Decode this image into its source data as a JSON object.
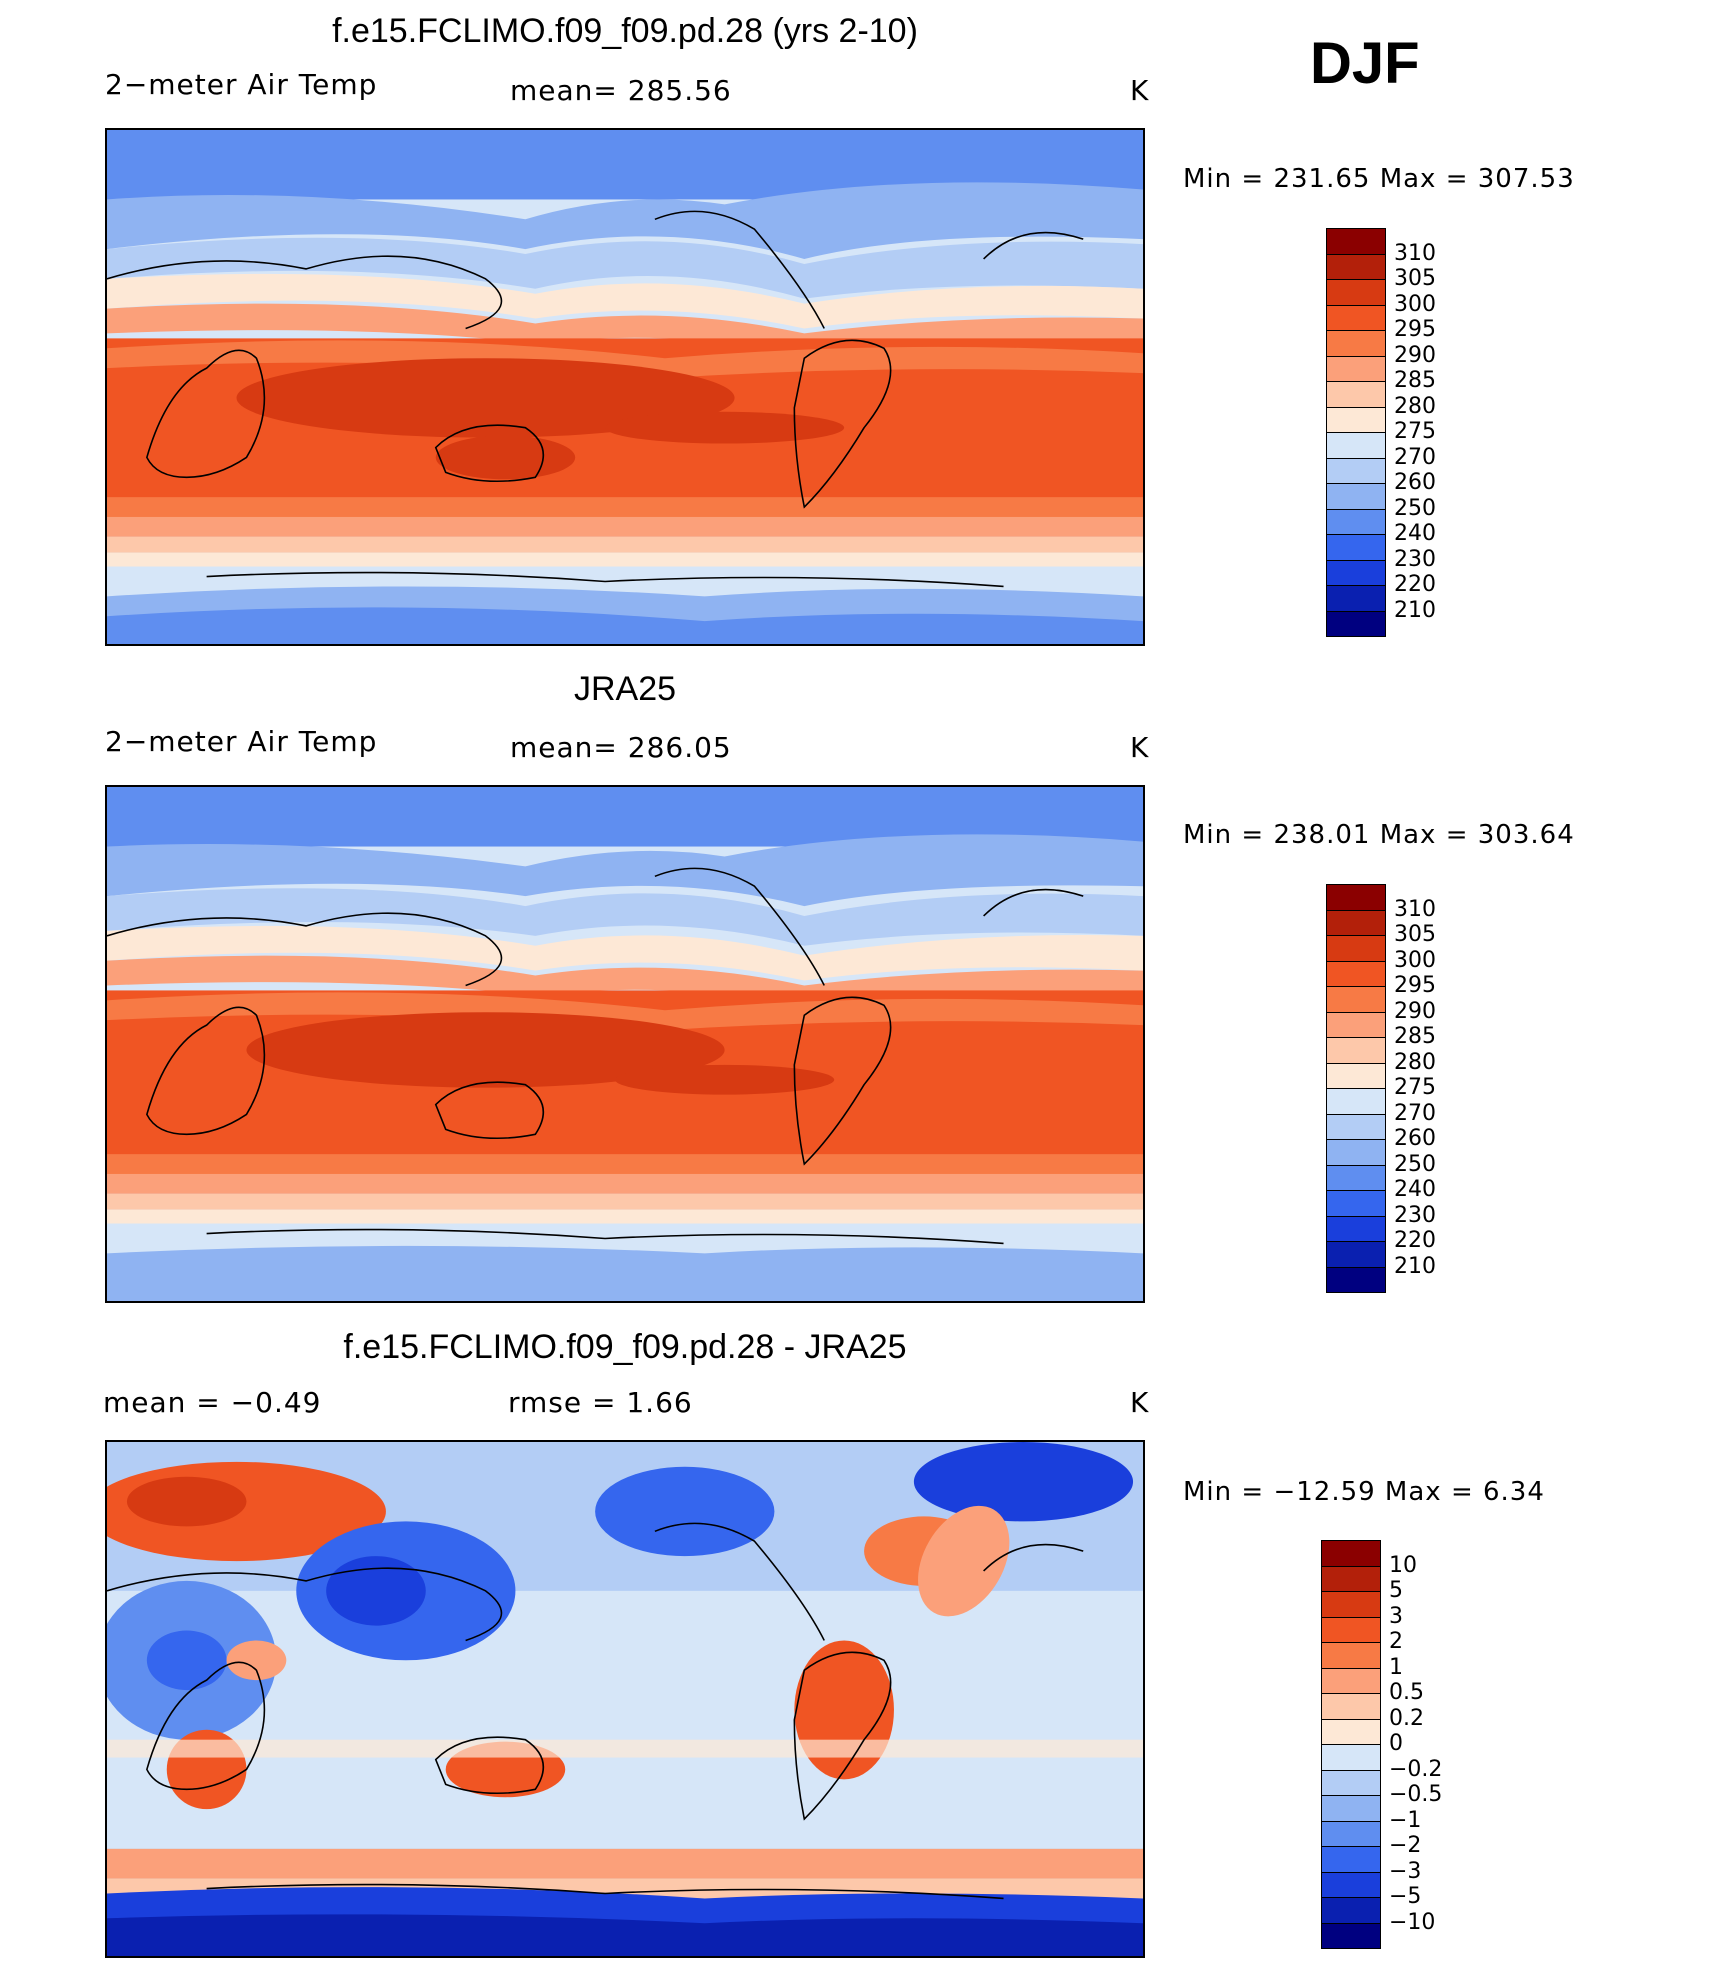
{
  "season": "DJF",
  "panels": [
    {
      "title": "f.e15.FCLIMO.f09_f09.pd.28 (yrs 2-10)",
      "left_label": "2−meter Air Temp",
      "center_label": "mean=  285.56",
      "units": "K",
      "minmax": "Min  =  231.65  Max  =  307.53",
      "colorbar": {
        "labels": [
          "310",
          "305",
          "300",
          "295",
          "290",
          "285",
          "280",
          "275",
          "270",
          "260",
          "250",
          "240",
          "230",
          "220",
          "210"
        ],
        "colors": [
          "#8b0000",
          "#b3200a",
          "#d73a12",
          "#f05523",
          "#f77a45",
          "#fba07a",
          "#fdc8aa",
          "#fde8d6",
          "#d6e6f8",
          "#b3cdf5",
          "#8fb3f2",
          "#5f8ef0",
          "#3566ee",
          "#1a3fdc",
          "#0a20b0",
          "#000080"
        ]
      }
    },
    {
      "title": "JRA25",
      "left_label": "2−meter Air Temp",
      "center_label": "mean=  286.05",
      "units": "K",
      "minmax": "Min  =  238.01  Max  =  303.64",
      "colorbar": {
        "labels": [
          "310",
          "305",
          "300",
          "295",
          "290",
          "285",
          "280",
          "275",
          "270",
          "260",
          "250",
          "240",
          "230",
          "220",
          "210"
        ],
        "colors": [
          "#8b0000",
          "#b3200a",
          "#d73a12",
          "#f05523",
          "#f77a45",
          "#fba07a",
          "#fdc8aa",
          "#fde8d6",
          "#d6e6f8",
          "#b3cdf5",
          "#8fb3f2",
          "#5f8ef0",
          "#3566ee",
          "#1a3fdc",
          "#0a20b0",
          "#000080"
        ]
      }
    },
    {
      "title": "f.e15.FCLIMO.f09_f09.pd.28 - JRA25",
      "left_label": "mean  =     −0.49",
      "center_label": "rmse  =      1.66",
      "units": "K",
      "minmax": "Min  =  −12.59  Max  =      6.34",
      "colorbar": {
        "labels": [
          "10",
          "5",
          "3",
          "2",
          "1",
          "0.5",
          "0.2",
          "0",
          "−0.2",
          "−0.5",
          "−1",
          "−2",
          "−3",
          "−5",
          "−10"
        ],
        "colors": [
          "#8b0000",
          "#b3200a",
          "#d73a12",
          "#f05523",
          "#f77a45",
          "#fba07a",
          "#fdc8aa",
          "#fde8d6",
          "#d6e6f8",
          "#b3cdf5",
          "#8fb3f2",
          "#5f8ef0",
          "#3566ee",
          "#1a3fdc",
          "#0a20b0",
          "#000080"
        ]
      }
    }
  ]
}
